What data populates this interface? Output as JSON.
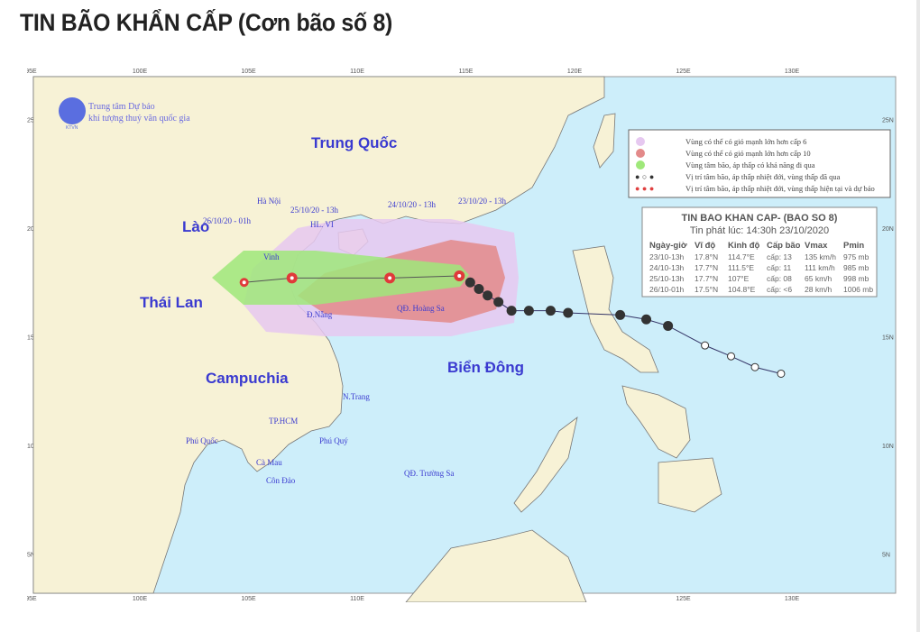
{
  "article": {
    "title": "TIN BÃO KHẨN CẤP (Cơn bão số 8)"
  },
  "map": {
    "logo": {
      "line1": "Trung tâm Dự báo",
      "line2": "khí tượng thuỷ văn quốc gia",
      "badge": "KTVN"
    },
    "lon_ticks": [
      "95E",
      "100E",
      "105E",
      "110E",
      "115E",
      "120E",
      "125E",
      "130E"
    ],
    "lat_ticks": [
      "25N",
      "20N",
      "15N",
      "10N",
      "5N"
    ],
    "countries": {
      "china": "Trung Quốc",
      "laos": "Lào",
      "thailand": "Thái Lan",
      "cambodia": "Campuchia",
      "sea": "Biển Đông"
    },
    "places": {
      "hanoi": "Hà Nội",
      "vinh": "Vinh",
      "hon_ngu": "HL. VI",
      "danang": "Đ.Nẵng",
      "hoangsa": "QĐ. Hoàng Sa",
      "nhatrang": "N.Trang",
      "hcm": "TP.HCM",
      "phuquoc": "Phú Quốc",
      "phuquy": "Phú Quý",
      "camau": "Cà Mau",
      "condao": "Côn Đảo",
      "truongsa": "QĐ. Trường Sa"
    },
    "track_labels": {
      "p1": "23/10/20 - 13h",
      "p2": "24/10/20 - 13h",
      "p3": "25/10/20 - 13h",
      "p4": "26/10/20 - 01h"
    },
    "colors": {
      "sea": "#cdeefa",
      "land": "#f7f2d6",
      "wind6": "#e6c8f0",
      "wind10": "#e38a8a",
      "cone": "#9fe87a",
      "label": "#3a3ad0"
    },
    "legend": [
      "Vùng có thể có gió mạnh lớn hơn cấp 6",
      "Vùng có thể có gió mạnh lớn hơn cấp 10",
      "Vùng tâm bão, áp thấp có khả năng đi qua",
      "Vị trí tâm bão, áp thấp nhiệt đới, vùng thấp đã qua",
      "Vị trí tâm bão, áp thấp nhiệt đới, vùng thấp hiện tại và dự báo"
    ],
    "bulletin": {
      "title": "TIN BAO KHAN CAP- (BAO SO 8)",
      "issued": "Tin phát lúc: 14:30h 23/10/2020",
      "headers": [
        "Ngày-giờ",
        "Vĩ độ",
        "Kinh độ",
        "Cấp bão",
        "Vmax",
        "Pmin"
      ],
      "rows": [
        [
          "23/10-13h",
          "17.8°N",
          "114.7°E",
          "cấp: 13",
          "135 km/h",
          "975 mb"
        ],
        [
          "24/10-13h",
          "17.7°N",
          "111.5°E",
          "cấp: 11",
          "111 km/h",
          "985 mb"
        ],
        [
          "25/10-13h",
          "17.7°N",
          "107°E",
          "cấp: 08",
          "65 km/h",
          "998 mb"
        ],
        [
          "26/10-01h",
          "17.5°N",
          "104.8°E",
          "cấp: <6",
          "28 km/h",
          "1006 mb"
        ]
      ]
    },
    "forecast_track": [
      [
        114.7,
        17.8
      ],
      [
        111.5,
        17.7
      ],
      [
        107,
        17.7
      ],
      [
        104.8,
        17.5
      ]
    ],
    "past_track": [
      [
        129.5,
        13.3
      ],
      [
        128.3,
        13.6
      ],
      [
        127.2,
        14.1
      ],
      [
        126,
        14.6
      ],
      [
        124.3,
        15.5
      ],
      [
        123.3,
        15.8
      ],
      [
        122.1,
        16
      ],
      [
        119.7,
        16.1
      ],
      [
        118.9,
        16.2
      ],
      [
        117.9,
        16.2
      ],
      [
        117.1,
        16.2
      ],
      [
        116.5,
        16.6
      ],
      [
        116,
        16.9
      ],
      [
        115.6,
        17.2
      ],
      [
        115.2,
        17.5
      ]
    ]
  }
}
